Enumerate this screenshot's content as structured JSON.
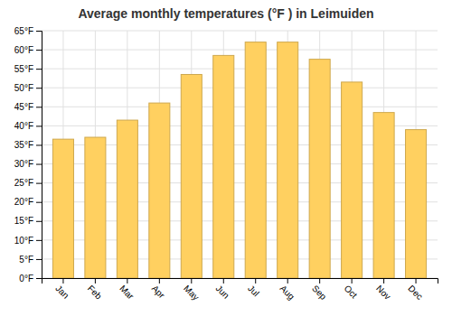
{
  "chart_data": {
    "type": "bar",
    "title": "Average monthly temperatures (°F ) in Leimuiden",
    "categories": [
      "Jan",
      "Feb",
      "Mar",
      "Apr",
      "May",
      "Jun",
      "Jul",
      "Aug",
      "Sep",
      "Oct",
      "Nov",
      "Dec"
    ],
    "values": [
      36.5,
      37.0,
      41.5,
      46.0,
      53.5,
      58.5,
      62.0,
      62.0,
      57.5,
      51.5,
      43.5,
      39.0
    ],
    "color": "#FFD060",
    "ylim": [
      0,
      65
    ],
    "yticks": [
      {
        "value": 0,
        "label": "0°F"
      },
      {
        "value": 5,
        "label": "5°F"
      },
      {
        "value": 10,
        "label": "10°F"
      },
      {
        "value": 15,
        "label": "15°F"
      },
      {
        "value": 20,
        "label": "20°F"
      },
      {
        "value": 25,
        "label": "25°F"
      },
      {
        "value": 30,
        "label": "30°F"
      },
      {
        "value": 35,
        "label": "35°F"
      },
      {
        "value": 40,
        "label": "40°F"
      },
      {
        "value": 45,
        "label": "45°F"
      },
      {
        "value": 50,
        "label": "50°F"
      },
      {
        "value": 55,
        "label": "55°F"
      },
      {
        "value": 60,
        "label": "60°F"
      },
      {
        "value": 65,
        "label": "65°F"
      }
    ],
    "grid": true
  }
}
